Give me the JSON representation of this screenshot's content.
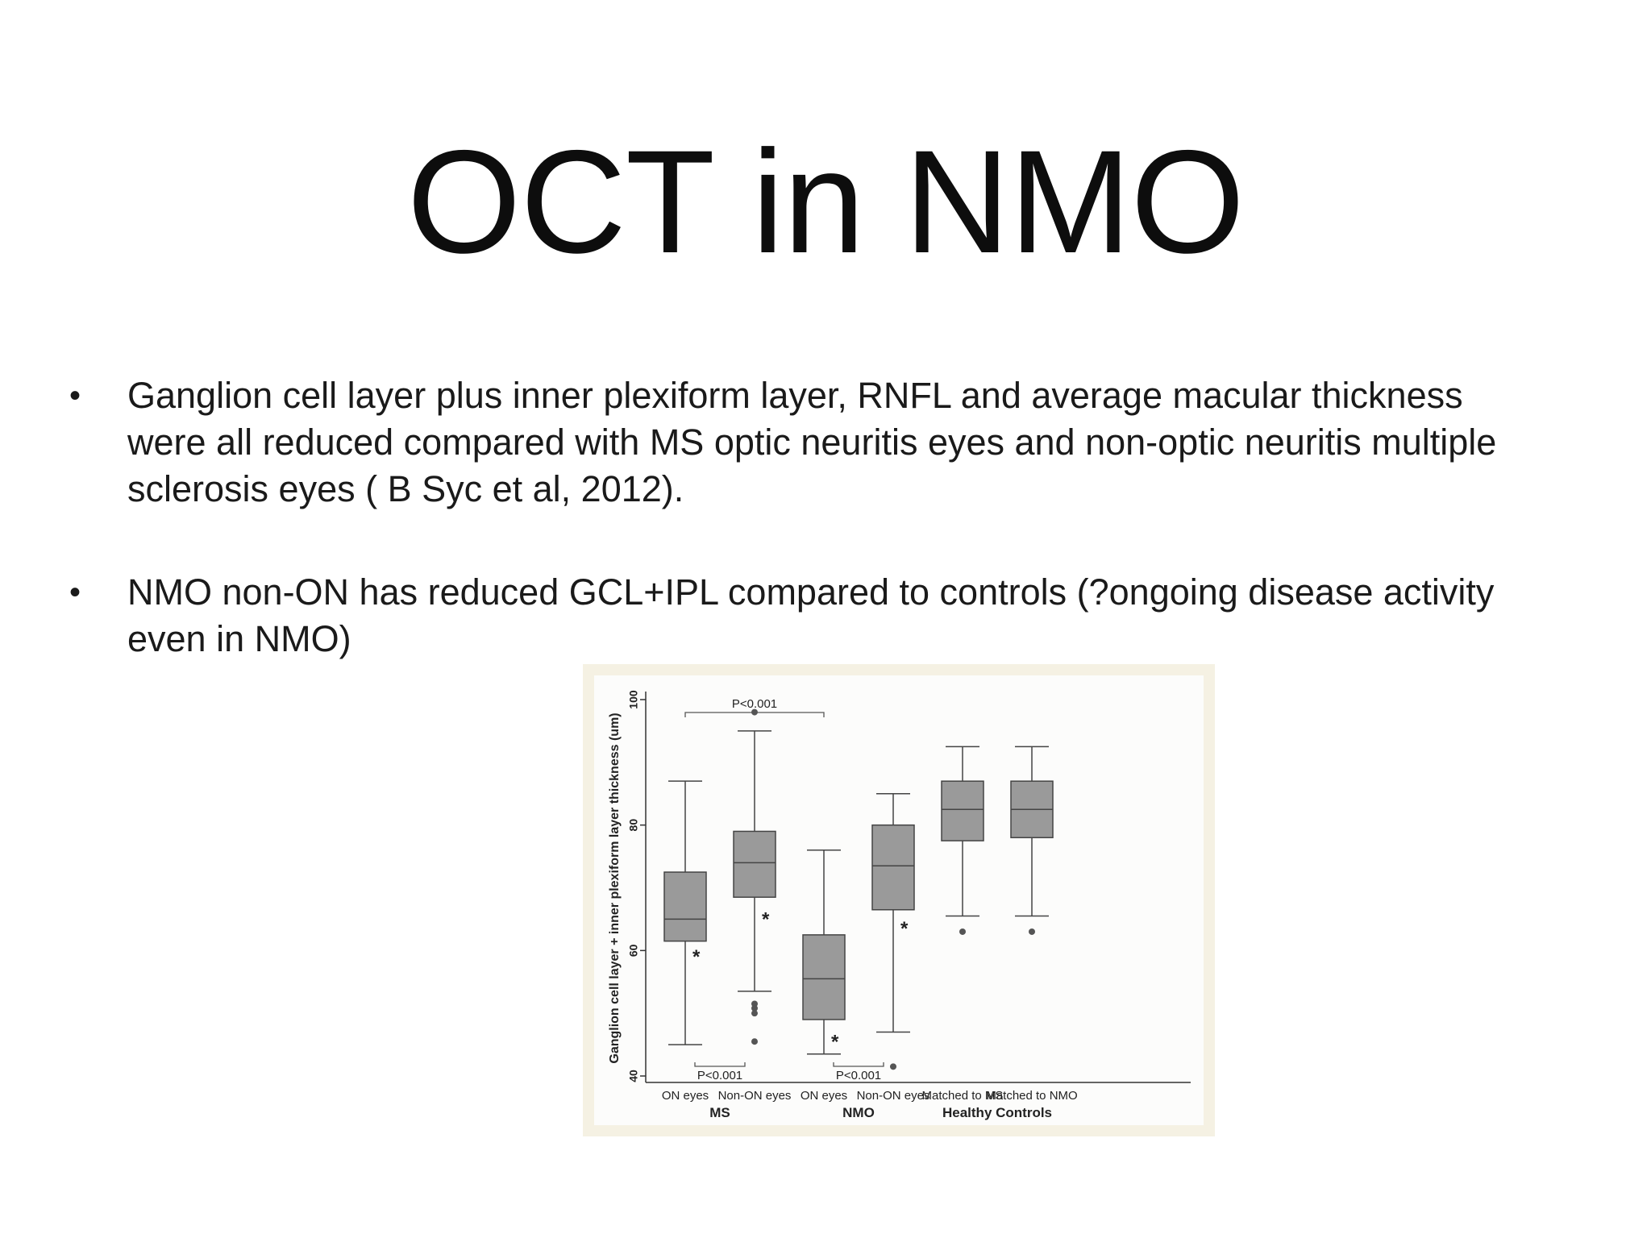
{
  "slide": {
    "title": "OCT in NMO",
    "bullets": [
      "Ganglion cell layer plus inner plexiform layer, RNFL and average macular thickness were all reduced compared with MS optic neuritis eyes and non-optic neuritis multiple sclerosis eyes ( B Syc et al, 2012).",
      "NMO non-ON has reduced GCL+IPL compared to controls (?ongoing disease activity even in NMO)"
    ]
  },
  "chart_data": {
    "type": "box",
    "ylabel": "Ganglion cell layer + inner plexiform layer thickness (um)",
    "ylim": [
      40,
      100
    ],
    "yticks": [
      40,
      60,
      80,
      100
    ],
    "box_color": "#9a9a9a",
    "boxes": [
      {
        "label": "ON eyes",
        "group": "MS",
        "whisker_low": 45,
        "q1": 61.5,
        "median": 65,
        "q3": 72.5,
        "whisker_high": 87,
        "outliers": [],
        "star": 59.5
      },
      {
        "label": "Non-ON eyes",
        "group": "MS",
        "whisker_low": 53.5,
        "q1": 68.5,
        "median": 74,
        "q3": 79,
        "whisker_high": 95,
        "outliers": [
          98,
          51.5,
          50.8,
          50,
          45.5
        ],
        "star": 65.5
      },
      {
        "label": "ON eyes",
        "group": "NMO",
        "whisker_low": 43.5,
        "q1": 49,
        "median": 55.5,
        "q3": 62.5,
        "whisker_high": 76,
        "outliers": [],
        "star": 46
      },
      {
        "label": "Non-ON eyes",
        "group": "NMO",
        "whisker_low": 47,
        "q1": 66.5,
        "median": 73.5,
        "q3": 80,
        "whisker_high": 85,
        "outliers": [
          41.5
        ],
        "star": 64
      },
      {
        "label": "Matched to MS",
        "group": "Healthy Controls",
        "whisker_low": 65.5,
        "q1": 77.5,
        "median": 82.5,
        "q3": 87,
        "whisker_high": 92.5,
        "outliers": [
          63
        ],
        "star": null
      },
      {
        "label": "Matched to NMO",
        "group": "Healthy Controls",
        "whisker_low": 65.5,
        "q1": 78,
        "median": 82.5,
        "q3": 87,
        "whisker_high": 92.5,
        "outliers": [
          63
        ],
        "star": null
      }
    ],
    "groups": [
      "MS",
      "NMO",
      "Healthy Controls"
    ],
    "annotations": [
      {
        "text": "P<0.001",
        "from": 0,
        "to": 2,
        "position": "top"
      },
      {
        "text": "P<0.001",
        "from": 0,
        "to": 1,
        "position": "bottom"
      },
      {
        "text": "P<0.001",
        "from": 2,
        "to": 3,
        "position": "bottom"
      }
    ]
  }
}
